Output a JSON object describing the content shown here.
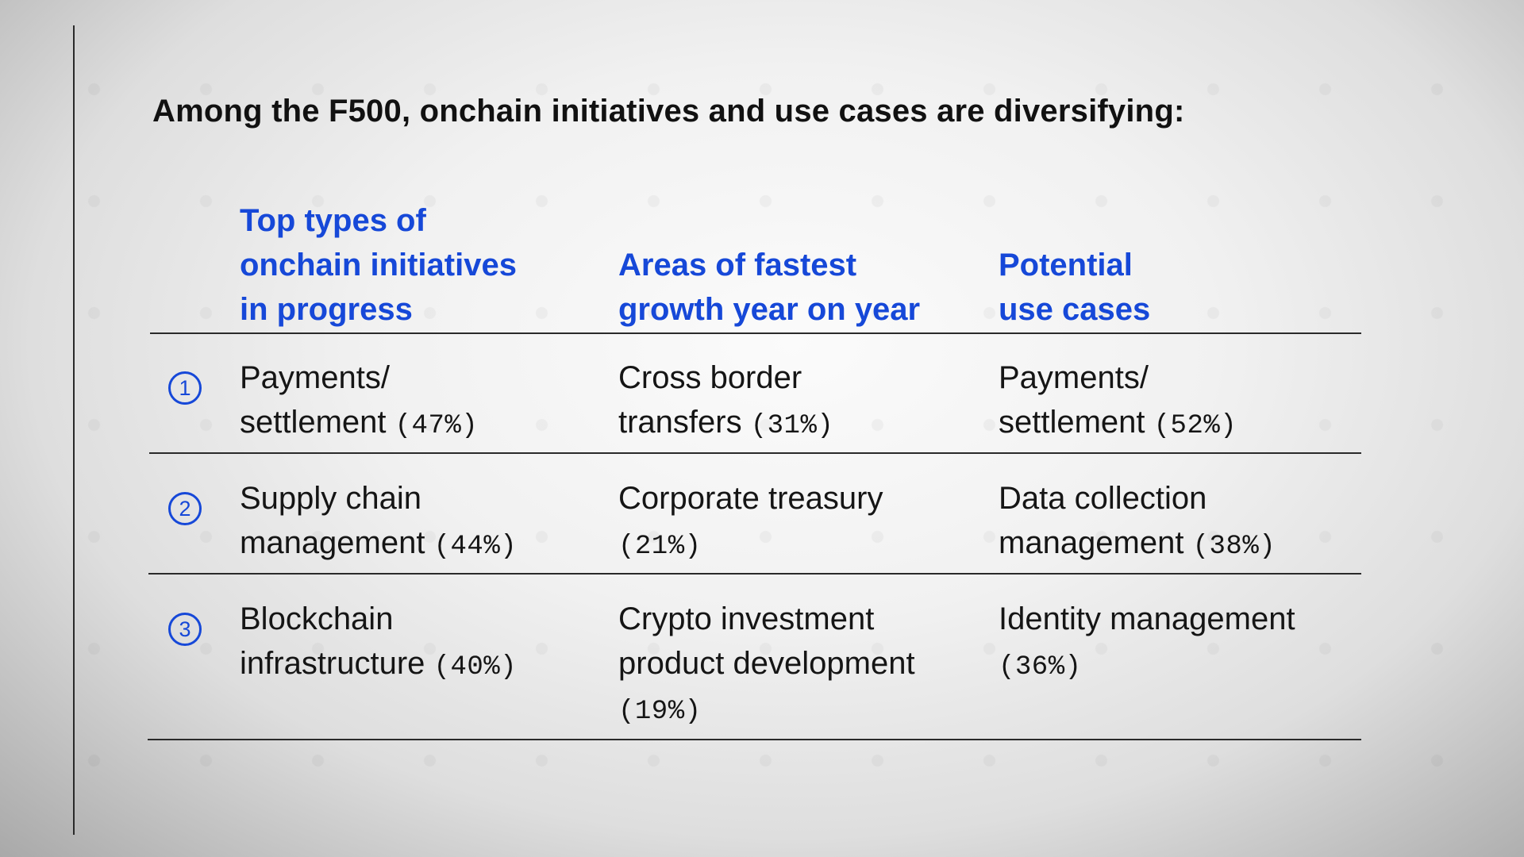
{
  "headline": "Among the F500, onchain initiatives and use cases are diversifying:",
  "columns": [
    {
      "header_lines": [
        "Top types of",
        "onchain initiatives",
        "in progress"
      ]
    },
    {
      "header_lines": [
        "Areas of fastest",
        "growth year on year"
      ]
    },
    {
      "header_lines": [
        "Potential",
        "use cases"
      ]
    }
  ],
  "rows": [
    {
      "rank": "1",
      "cells": [
        {
          "lines": [
            "Payments/",
            "settlement"
          ],
          "pct": "(47%)"
        },
        {
          "lines": [
            "Cross border",
            "transfers"
          ],
          "pct": "(31%)"
        },
        {
          "lines": [
            "Payments/",
            "settlement"
          ],
          "pct": "(52%)"
        }
      ]
    },
    {
      "rank": "2",
      "cells": [
        {
          "lines": [
            "Supply chain",
            "management"
          ],
          "pct": "(44%)"
        },
        {
          "lines": [
            "Corporate treasury"
          ],
          "pct": "(21%)"
        },
        {
          "lines": [
            "Data collection",
            "management"
          ],
          "pct": "(38%)"
        }
      ]
    },
    {
      "rank": "3",
      "cells": [
        {
          "lines": [
            "Blockchain",
            "infrastructure"
          ],
          "pct": "(40%)"
        },
        {
          "lines": [
            "Crypto investment",
            "product development"
          ],
          "pct": "(19%)"
        },
        {
          "lines": [
            "Identity management"
          ],
          "pct": "(36%)"
        }
      ]
    }
  ],
  "colors": {
    "accent_blue": "#1648d8",
    "text": "#151515",
    "rule": "#2a2a2a"
  }
}
